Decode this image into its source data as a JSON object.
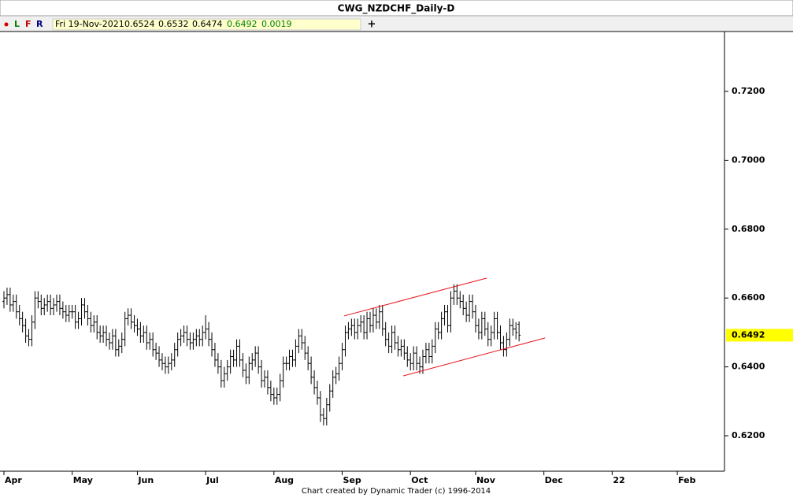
{
  "chart_data": {
    "type": "ohlc",
    "title": "CWG_NZDCHF_Daily-D",
    "toolbar": [
      "L",
      "F",
      "R"
    ],
    "last_date": "Fri 19-Nov-2021",
    "change": 0.0019,
    "footer": "Chart created by Dynamic Trader  (c) 1996-2014",
    "color": "#000000",
    "xlim": [
      -1.27,
      232.2
    ],
    "xticks": [
      {
        "value": 0,
        "label": "Apr"
      },
      {
        "value": 22,
        "label": "May"
      },
      {
        "value": 43,
        "label": "Jun"
      },
      {
        "value": 65,
        "label": "Jul"
      },
      {
        "value": 87,
        "label": "Aug"
      },
      {
        "value": 109,
        "label": "Sep"
      },
      {
        "value": 131,
        "label": "Oct"
      },
      {
        "value": 152,
        "label": "Nov"
      },
      {
        "value": 174,
        "label": "Dec"
      },
      {
        "value": 196,
        "label": "22"
      },
      {
        "value": 217,
        "label": "Feb"
      }
    ],
    "ylim": [
      0.6097,
      0.7374
    ],
    "yticks": [
      {
        "value": 0.62,
        "label": "0.6200"
      },
      {
        "value": 0.64,
        "label": "0.6400"
      },
      {
        "value": 0.66,
        "label": "0.6600"
      },
      {
        "value": 0.68,
        "label": "0.6800"
      },
      {
        "value": 0.7,
        "label": "0.7000"
      },
      {
        "value": 0.72,
        "label": "0.7200"
      }
    ],
    "open": [
      0.659,
      0.66,
      0.661,
      0.658,
      0.659,
      0.656,
      0.654,
      0.652,
      0.649,
      0.648,
      0.653,
      0.66,
      0.659,
      0.657,
      0.658,
      0.659,
      0.657,
      0.658,
      0.659,
      0.657,
      0.656,
      0.655,
      0.656,
      0.656,
      0.653,
      0.654,
      0.658,
      0.656,
      0.654,
      0.652,
      0.653,
      0.65,
      0.649,
      0.65,
      0.648,
      0.647,
      0.649,
      0.645,
      0.646,
      0.648,
      0.654,
      0.655,
      0.653,
      0.652,
      0.651,
      0.649,
      0.65,
      0.647,
      0.648,
      0.645,
      0.644,
      0.642,
      0.641,
      0.64,
      0.641,
      0.642,
      0.645,
      0.648,
      0.649,
      0.65,
      0.648,
      0.647,
      0.648,
      0.649,
      0.648,
      0.65,
      0.651,
      0.648,
      0.645,
      0.642,
      0.64,
      0.636,
      0.638,
      0.64,
      0.643,
      0.642,
      0.646,
      0.642,
      0.639,
      0.637,
      0.641,
      0.642,
      0.644,
      0.64,
      0.636,
      0.637,
      0.634,
      0.632,
      0.631,
      0.632,
      0.636,
      0.641,
      0.641,
      0.643,
      0.642,
      0.646,
      0.649,
      0.647,
      0.644,
      0.641,
      0.637,
      0.634,
      0.631,
      0.626,
      0.625,
      0.629,
      0.633,
      0.637,
      0.638,
      0.641,
      0.645,
      0.65,
      0.651,
      0.652,
      0.65,
      0.652,
      0.653,
      0.65,
      0.654,
      0.652,
      0.655,
      0.653,
      0.656,
      0.651,
      0.648,
      0.646,
      0.65,
      0.647,
      0.645,
      0.646,
      0.644,
      0.642,
      0.641,
      0.644,
      0.641,
      0.64,
      0.643,
      0.645,
      0.643,
      0.646,
      0.651,
      0.65,
      0.654,
      0.656,
      0.652,
      0.66,
      0.662,
      0.66,
      0.659,
      0.657,
      0.655,
      0.659,
      0.656,
      0.652,
      0.65,
      0.654,
      0.651,
      0.648,
      0.65,
      0.654,
      0.65,
      0.647,
      0.645,
      0.648,
      0.652,
      0.651,
      0.6524
    ],
    "high": [
      0.662,
      0.663,
      0.663,
      0.661,
      0.661,
      0.658,
      0.656,
      0.654,
      0.651,
      0.655,
      0.662,
      0.662,
      0.661,
      0.66,
      0.661,
      0.661,
      0.66,
      0.661,
      0.661,
      0.659,
      0.658,
      0.658,
      0.658,
      0.658,
      0.656,
      0.66,
      0.66,
      0.658,
      0.656,
      0.655,
      0.655,
      0.652,
      0.652,
      0.652,
      0.65,
      0.651,
      0.651,
      0.648,
      0.65,
      0.656,
      0.657,
      0.657,
      0.655,
      0.654,
      0.653,
      0.652,
      0.652,
      0.65,
      0.65,
      0.647,
      0.646,
      0.644,
      0.643,
      0.643,
      0.644,
      0.647,
      0.65,
      0.651,
      0.652,
      0.652,
      0.65,
      0.65,
      0.651,
      0.651,
      0.652,
      0.655,
      0.653,
      0.65,
      0.647,
      0.644,
      0.642,
      0.64,
      0.642,
      0.645,
      0.645,
      0.648,
      0.648,
      0.644,
      0.641,
      0.643,
      0.644,
      0.646,
      0.646,
      0.642,
      0.639,
      0.639,
      0.636,
      0.634,
      0.634,
      0.638,
      0.643,
      0.643,
      0.645,
      0.645,
      0.648,
      0.651,
      0.651,
      0.649,
      0.646,
      0.643,
      0.639,
      0.636,
      0.633,
      0.628,
      0.631,
      0.635,
      0.639,
      0.64,
      0.643,
      0.647,
      0.652,
      0.653,
      0.654,
      0.654,
      0.654,
      0.655,
      0.655,
      0.656,
      0.656,
      0.657,
      0.657,
      0.658,
      0.658,
      0.653,
      0.65,
      0.652,
      0.652,
      0.649,
      0.648,
      0.648,
      0.646,
      0.644,
      0.646,
      0.646,
      0.643,
      0.645,
      0.647,
      0.647,
      0.648,
      0.653,
      0.653,
      0.656,
      0.658,
      0.658,
      0.662,
      0.664,
      0.664,
      0.662,
      0.661,
      0.659,
      0.661,
      0.661,
      0.658,
      0.654,
      0.656,
      0.656,
      0.653,
      0.652,
      0.656,
      0.656,
      0.652,
      0.649,
      0.65,
      0.654,
      0.654,
      0.653,
      0.6532
    ],
    "low": [
      0.657,
      0.658,
      0.656,
      0.656,
      0.654,
      0.652,
      0.65,
      0.647,
      0.646,
      0.646,
      0.651,
      0.657,
      0.655,
      0.655,
      0.656,
      0.655,
      0.655,
      0.656,
      0.655,
      0.654,
      0.653,
      0.653,
      0.654,
      0.651,
      0.651,
      0.652,
      0.654,
      0.652,
      0.65,
      0.65,
      0.648,
      0.647,
      0.647,
      0.646,
      0.645,
      0.645,
      0.643,
      0.643,
      0.644,
      0.646,
      0.652,
      0.651,
      0.65,
      0.649,
      0.647,
      0.647,
      0.645,
      0.645,
      0.643,
      0.642,
      0.64,
      0.639,
      0.638,
      0.638,
      0.639,
      0.64,
      0.643,
      0.646,
      0.647,
      0.646,
      0.645,
      0.645,
      0.646,
      0.646,
      0.646,
      0.648,
      0.646,
      0.643,
      0.64,
      0.638,
      0.634,
      0.634,
      0.636,
      0.638,
      0.64,
      0.64,
      0.64,
      0.637,
      0.635,
      0.635,
      0.639,
      0.64,
      0.638,
      0.634,
      0.634,
      0.632,
      0.63,
      0.629,
      0.629,
      0.63,
      0.634,
      0.639,
      0.639,
      0.64,
      0.64,
      0.644,
      0.645,
      0.642,
      0.639,
      0.635,
      0.632,
      0.629,
      0.624,
      0.623,
      0.623,
      0.627,
      0.631,
      0.635,
      0.636,
      0.639,
      0.643,
      0.648,
      0.649,
      0.648,
      0.648,
      0.65,
      0.648,
      0.648,
      0.65,
      0.65,
      0.651,
      0.651,
      0.649,
      0.646,
      0.644,
      0.644,
      0.645,
      0.643,
      0.643,
      0.642,
      0.64,
      0.639,
      0.639,
      0.639,
      0.638,
      0.638,
      0.641,
      0.641,
      0.641,
      0.644,
      0.648,
      0.648,
      0.652,
      0.65,
      0.65,
      0.658,
      0.658,
      0.657,
      0.655,
      0.653,
      0.653,
      0.654,
      0.65,
      0.648,
      0.648,
      0.649,
      0.646,
      0.646,
      0.648,
      0.648,
      0.645,
      0.643,
      0.643,
      0.646,
      0.649,
      0.648,
      0.6474
    ],
    "close": [
      0.66,
      0.661,
      0.658,
      0.659,
      0.656,
      0.654,
      0.652,
      0.649,
      0.648,
      0.653,
      0.66,
      0.659,
      0.657,
      0.658,
      0.659,
      0.657,
      0.658,
      0.659,
      0.657,
      0.656,
      0.655,
      0.656,
      0.656,
      0.653,
      0.654,
      0.658,
      0.656,
      0.654,
      0.652,
      0.653,
      0.65,
      0.649,
      0.65,
      0.648,
      0.647,
      0.649,
      0.645,
      0.646,
      0.648,
      0.654,
      0.655,
      0.653,
      0.652,
      0.651,
      0.649,
      0.65,
      0.647,
      0.648,
      0.645,
      0.644,
      0.642,
      0.641,
      0.64,
      0.641,
      0.642,
      0.645,
      0.648,
      0.649,
      0.65,
      0.648,
      0.647,
      0.648,
      0.649,
      0.648,
      0.65,
      0.651,
      0.648,
      0.645,
      0.642,
      0.64,
      0.636,
      0.638,
      0.64,
      0.643,
      0.642,
      0.646,
      0.642,
      0.639,
      0.637,
      0.641,
      0.642,
      0.644,
      0.64,
      0.636,
      0.637,
      0.634,
      0.632,
      0.631,
      0.632,
      0.636,
      0.641,
      0.641,
      0.643,
      0.642,
      0.646,
      0.649,
      0.647,
      0.644,
      0.641,
      0.637,
      0.634,
      0.631,
      0.626,
      0.625,
      0.629,
      0.633,
      0.637,
      0.638,
      0.641,
      0.645,
      0.65,
      0.651,
      0.652,
      0.65,
      0.652,
      0.653,
      0.65,
      0.654,
      0.652,
      0.655,
      0.653,
      0.656,
      0.651,
      0.648,
      0.646,
      0.65,
      0.647,
      0.645,
      0.646,
      0.644,
      0.642,
      0.641,
      0.644,
      0.641,
      0.64,
      0.643,
      0.645,
      0.643,
      0.646,
      0.651,
      0.65,
      0.654,
      0.656,
      0.652,
      0.66,
      0.662,
      0.66,
      0.659,
      0.657,
      0.655,
      0.659,
      0.656,
      0.652,
      0.65,
      0.654,
      0.651,
      0.648,
      0.65,
      0.654,
      0.65,
      0.647,
      0.645,
      0.648,
      0.652,
      0.651,
      0.65,
      0.6492
    ],
    "trendlines": [
      {
        "color": "#e8141c",
        "x": [
          109.6,
          155.6
        ],
        "y": [
          0.6548,
          0.6658
        ]
      },
      {
        "color": "#e8141c",
        "x": [
          128.7,
          174.4
        ],
        "y": [
          0.6374,
          0.6484
        ]
      }
    ],
    "price_tag_color": "#ffff00"
  }
}
